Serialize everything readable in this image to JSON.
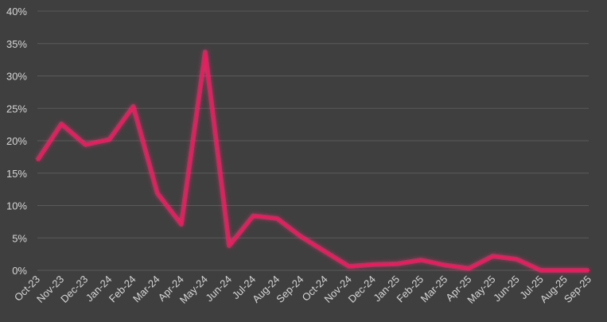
{
  "colors": {
    "background": "#3f3f3f",
    "gridline": "#5a5a5a",
    "text": "#d6d6d6",
    "series": "#f0195f",
    "glow": "#ff2f73"
  },
  "chart_data": {
    "type": "line",
    "title": "",
    "xlabel": "",
    "ylabel": "",
    "ylim": [
      0,
      40
    ],
    "y_ticks": [
      0,
      5,
      10,
      15,
      20,
      25,
      30,
      35,
      40
    ],
    "y_tick_labels": [
      "0%",
      "5%",
      "10%",
      "15%",
      "20%",
      "25%",
      "30%",
      "35%",
      "40%"
    ],
    "grid": true,
    "legend": "none",
    "categories": [
      "Oct-23",
      "Nov-23",
      "Dec-23",
      "Jan-24",
      "Feb-24",
      "Mar-24",
      "Apr-24",
      "May-24",
      "Jun-24",
      "Jul-24",
      "Aug-24",
      "Sep-24",
      "Oct-24",
      "Nov-24",
      "Dec-24",
      "Jan-25",
      "Feb-25",
      "Mar-25",
      "Apr-25",
      "May-25",
      "Jun-25",
      "Jul-25",
      "Aug-25",
      "Sep-25"
    ],
    "series": [
      {
        "values": [
          17.0,
          22.6,
          19.4,
          20.2,
          25.3,
          11.9,
          7.1,
          33.7,
          3.8,
          8.4,
          8.0,
          5.2,
          2.9,
          0.6,
          0.9,
          1.0,
          1.6,
          0.8,
          0.3,
          2.2,
          1.7,
          0.0,
          0.0,
          0.0
        ]
      }
    ]
  }
}
